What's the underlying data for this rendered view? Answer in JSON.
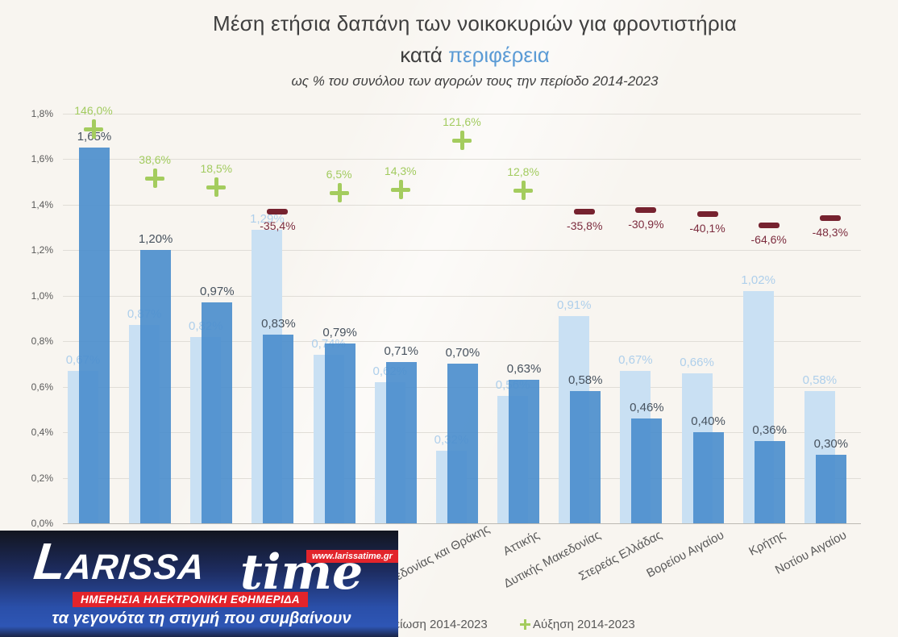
{
  "title": {
    "line1": "Μέση ετήσια δαπάνη των νοικοκυριών για φροντιστήρια",
    "line2_prefix": "κατά ",
    "line2_highlight": "περιφέρεια",
    "subtitle": "ως % του συνόλου των αγορών τους την περίοδο 2014-2023"
  },
  "legend": {
    "decrease_label": "Μείωση 2014-2023",
    "increase_label": "Αύξηση 2014-2023"
  },
  "logo": {
    "brand": "LARISSA",
    "brand_suffix": "time",
    "url_badge": "www.larissatime.gr",
    "banner": "ΗΜΕΡΗΣΙΑ ΗΛΕΚΤΡΟΝΙΚΗ ΕΦΗΜΕΡΙΔΑ",
    "tagline": "τα γεγονότα τη στιγμή που συμβαίνουν"
  },
  "colors": {
    "accent_blue": "#5b9bd5",
    "bar_light": "#c9e0f3",
    "bar_dark": "#5d9bd3",
    "increase_green": "#a4cc5e",
    "decrease_maroon": "#76222f",
    "logo_red": "#e2242b",
    "background": "#f8f5f0"
  },
  "chart_data": {
    "type": "bar",
    "title": "Μέση ετήσια δαπάνη των νοικοκυριών για φροντιστήρια κατά περιφέρεια",
    "subtitle": "ως % του συνόλου των αγορών τους την περίοδο 2014-2023",
    "grid": true,
    "legend_position": "bottom",
    "ylim": [
      0,
      1.8
    ],
    "y_ticks": [
      "0,0%",
      "0,2%",
      "0,4%",
      "0,6%",
      "0,8%",
      "1,0%",
      "1,2%",
      "1,4%",
      "1,6%",
      "1,8%"
    ],
    "categories": [
      "",
      "",
      "",
      "",
      "",
      "",
      "Ανατολικής Μακεδονίας και Θράκης",
      "Αττικής",
      "Δυτικής Μακεδονίας",
      "Στερεάς Ελλάδας",
      "Βορείου Αιγαίου",
      "Κρήτης",
      "Νοτίου Αιγαίου"
    ],
    "series": [
      {
        "name": "light",
        "values": [
          0.67,
          0.87,
          0.82,
          1.29,
          0.74,
          0.62,
          0.32,
          0.56,
          0.91,
          0.67,
          0.66,
          1.02,
          0.58
        ],
        "labels": [
          "0,67%",
          "0,87%",
          "0,82%",
          "1,29%",
          "0,74%",
          "0,62%",
          "0,32%",
          "0,56%",
          "0,91%",
          "0,67%",
          "0,66%",
          "1,02%",
          "0,58%"
        ]
      },
      {
        "name": "dark",
        "values": [
          1.65,
          1.2,
          0.97,
          0.83,
          0.79,
          0.71,
          0.7,
          0.63,
          0.58,
          0.46,
          0.4,
          0.36,
          0.3
        ],
        "labels": [
          "1,65%",
          "1,20%",
          "0,97%",
          "0,83%",
          "0,79%",
          "0,71%",
          "0,70%",
          "0,63%",
          "0,58%",
          "0,46%",
          "0,40%",
          "0,36%",
          "0,30%"
        ]
      }
    ],
    "change_series": {
      "increase_name": "Αύξηση 2014-2023",
      "decrease_name": "Μείωση 2014-2023",
      "pct": [
        146.0,
        38.6,
        18.5,
        -35.4,
        6.5,
        14.3,
        121.6,
        12.8,
        -35.8,
        -30.9,
        -40.1,
        -64.6,
        -48.3
      ],
      "labels": [
        "146,0%",
        "38,6%",
        "18,5%",
        "-35,4%",
        "6,5%",
        "14,3%",
        "121,6%",
        "12,8%",
        "-35,8%",
        "-30,9%",
        "-40,1%",
        "-64,6%",
        "-48,3%"
      ]
    }
  }
}
